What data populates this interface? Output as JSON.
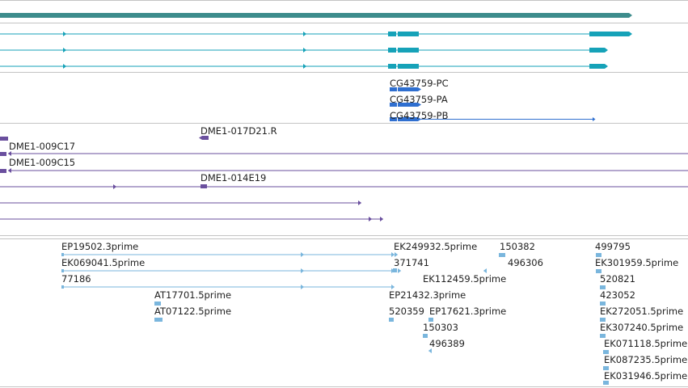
{
  "colors": {
    "background": "#ffffff",
    "track_divider": "#c4c4c4",
    "gene_bar": "#3d8c8c",
    "transcript": "#16a2b8",
    "cds": "#2f6fd0",
    "clone": "#6a4f9e",
    "est": "#7ab6dd",
    "label_text": "#222222"
  },
  "tracks": {
    "cds": {
      "labels": [
        "CG43759-PC",
        "CG43759-PA",
        "CG43759-PB"
      ]
    },
    "clones": {
      "labels": [
        "DME1-017D21.R",
        "DME1-009C17",
        "DME1-009C15",
        "DME1-014E19"
      ]
    },
    "ests": {
      "labels": [
        "EP19502.3prime",
        "EK069041.5prime",
        "77186",
        "AT17701.5prime",
        "AT07122.5prime",
        "EK249932.5prime",
        "371741",
        "EP21432.3prime",
        "520359",
        "EP17621.3prime",
        "EK112459.5prime",
        "150303",
        "496389",
        "150382",
        "496306",
        "499795",
        "EK301959.5prime",
        "520821",
        "423052",
        "EK272051.5prime",
        "EK307240.5prime",
        "EK071118.5prime",
        "EK087235.5prime",
        "EK031946.5prime"
      ]
    }
  }
}
